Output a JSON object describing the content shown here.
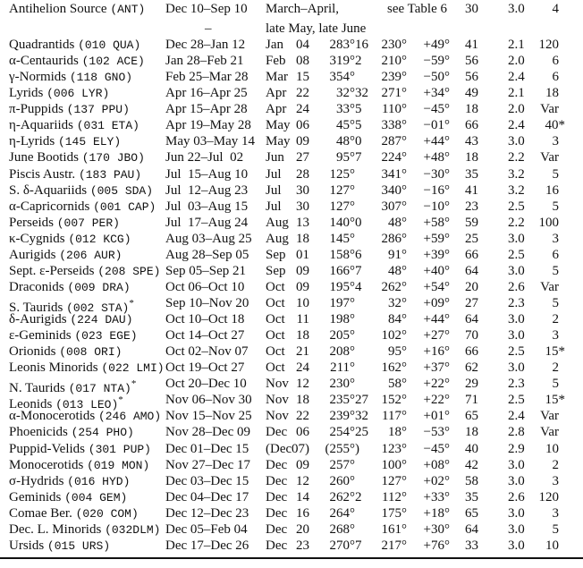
{
  "first_row": {
    "name": "Antihelion Source",
    "code": "(ANT)",
    "dates": "Dec 10–Sep 10",
    "dates_line2": "–",
    "peak_line1": "March–April,",
    "peak_line2": "late May, late June",
    "radiant": "see Table 6",
    "v": "30",
    "r": "3.0",
    "zhr": "4"
  },
  "rows": [
    {
      "name": "Quadrantids",
      "code": "(010 QUA)",
      "mark": "",
      "dates": "Dec 28–Jan 12",
      "pm": "Jan",
      "pd": "04",
      "lambda": "283°16",
      "ra": "230°",
      "dec": "+49°",
      "v": "41",
      "r": "2.1",
      "zhr": "120"
    },
    {
      "name": "α-Centaurids",
      "code": "(102 ACE)",
      "mark": "",
      "dates": "Jan 28–Feb 21",
      "pm": "Feb",
      "pd": "08",
      "lambda": "319°2",
      "ra": "210°",
      "dec": "−59°",
      "v": "56",
      "r": "2.0",
      "zhr": "6"
    },
    {
      "name": "γ-Normids",
      "code": "(118 GNO)",
      "mark": "",
      "dates": "Feb 25–Mar 28",
      "pm": "Mar",
      "pd": "15",
      "lambda": "354°",
      "ra": "239°",
      "dec": "−50°",
      "v": "56",
      "r": "2.4",
      "zhr": "6"
    },
    {
      "name": "Lyrids",
      "code": "(006 LYR)",
      "mark": "",
      "dates": "Apr 16–Apr 25",
      "pm": "Apr",
      "pd": "22",
      "lambda": "32°32",
      "ra": "271°",
      "dec": "+34°",
      "v": "49",
      "r": "2.1",
      "zhr": "18"
    },
    {
      "name": "π-Puppids",
      "code": "(137 PPU)",
      "mark": "",
      "dates": "Apr 15–Apr 28",
      "pm": "Apr",
      "pd": "24",
      "lambda": "33°5",
      "ra": "110°",
      "dec": "−45°",
      "v": "18",
      "r": "2.0",
      "zhr": "Var"
    },
    {
      "name": "η-Aquariids",
      "code": "(031 ETA)",
      "mark": "",
      "dates": "Apr 19–May 28",
      "pm": "May",
      "pd": "06",
      "lambda": "45°5",
      "ra": "338°",
      "dec": "−01°",
      "v": "66",
      "r": "2.4",
      "zhr": "40*"
    },
    {
      "name": "η-Lyrids",
      "code": "(145 ELY)",
      "mark": "",
      "dates": "May 03–May 14",
      "pm": "May",
      "pd": "09",
      "lambda": "48°0",
      "ra": "287°",
      "dec": "+44°",
      "v": "43",
      "r": "3.0",
      "zhr": "3"
    },
    {
      "name": "June Bootids",
      "code": "(170 JBO)",
      "mark": "",
      "dates": "Jun 22–Jul  02",
      "pm": "Jun",
      "pd": "27",
      "lambda": "95°7",
      "ra": "224°",
      "dec": "+48°",
      "v": "18",
      "r": "2.2",
      "zhr": "Var"
    },
    {
      "name": "Piscis Austr.",
      "code": "(183 PAU)",
      "mark": "",
      "dates": "Jul  15–Aug 10",
      "pm": "Jul",
      "pd": "28",
      "lambda": "125°",
      "ra": "341°",
      "dec": "−30°",
      "v": "35",
      "r": "3.2",
      "zhr": "5"
    },
    {
      "name": "S. δ-Aquariids",
      "code": "(005 SDA)",
      "mark": "",
      "dates": "Jul  12–Aug 23",
      "pm": "Jul",
      "pd": "30",
      "lambda": "127°",
      "ra": "340°",
      "dec": "−16°",
      "v": "41",
      "r": "3.2",
      "zhr": "16"
    },
    {
      "name": "α-Capricornids",
      "code": "(001 CAP)",
      "mark": "",
      "dates": "Jul  03–Aug 15",
      "pm": "Jul",
      "pd": "30",
      "lambda": "127°",
      "ra": "307°",
      "dec": "−10°",
      "v": "23",
      "r": "2.5",
      "zhr": "5"
    },
    {
      "name": "Perseids",
      "code": "(007 PER)",
      "mark": "",
      "dates": "Jul  17–Aug 24",
      "pm": "Aug",
      "pd": "13",
      "lambda": "140°0",
      "ra": "48°",
      "dec": "+58°",
      "v": "59",
      "r": "2.2",
      "zhr": "100"
    },
    {
      "name": "κ-Cygnids",
      "code": "(012 KCG)",
      "mark": "",
      "dates": "Aug 03–Aug 25",
      "pm": "Aug",
      "pd": "18",
      "lambda": "145°",
      "ra": "286°",
      "dec": "+59°",
      "v": "25",
      "r": "3.0",
      "zhr": "3"
    },
    {
      "name": "Aurigids",
      "code": "(206 AUR)",
      "mark": "",
      "dates": "Aug 28–Sep 05",
      "pm": "Sep",
      "pd": "01",
      "lambda": "158°6",
      "ra": "91°",
      "dec": "+39°",
      "v": "66",
      "r": "2.5",
      "zhr": "6"
    },
    {
      "name": "Sept. ε-Perseids",
      "code": "(208 SPE)",
      "mark": "",
      "dates": "Sep 05–Sep 21",
      "pm": "Sep",
      "pd": "09",
      "lambda": "166°7",
      "ra": "48°",
      "dec": "+40°",
      "v": "64",
      "r": "3.0",
      "zhr": "5"
    },
    {
      "name": "Draconids",
      "code": "(009 DRA)",
      "mark": "",
      "dates": "Oct 06–Oct 10",
      "pm": "Oct",
      "pd": "09",
      "lambda": "195°4",
      "ra": "262°",
      "dec": "+54°",
      "v": "20",
      "r": "2.6",
      "zhr": "Var"
    },
    {
      "name": "S. Taurids",
      "code": "(002 STA)",
      "mark": "*",
      "dates": "Sep 10–Nov 20",
      "pm": "Oct",
      "pd": "10",
      "lambda": "197°",
      "ra": "32°",
      "dec": "+09°",
      "v": "27",
      "r": "2.3",
      "zhr": "5"
    },
    {
      "name": "δ-Aurigids",
      "code": "(224 DAU)",
      "mark": "",
      "dates": "Oct 10–Oct 18",
      "pm": "Oct",
      "pd": "11",
      "lambda": "198°",
      "ra": "84°",
      "dec": "+44°",
      "v": "64",
      "r": "3.0",
      "zhr": "2"
    },
    {
      "name": "ε-Geminids",
      "code": "(023 EGE)",
      "mark": "",
      "dates": "Oct 14–Oct 27",
      "pm": "Oct",
      "pd": "18",
      "lambda": "205°",
      "ra": "102°",
      "dec": "+27°",
      "v": "70",
      "r": "3.0",
      "zhr": "3"
    },
    {
      "name": "Orionids",
      "code": "(008 ORI)",
      "mark": "",
      "dates": "Oct 02–Nov 07",
      "pm": "Oct",
      "pd": "21",
      "lambda": "208°",
      "ra": "95°",
      "dec": "+16°",
      "v": "66",
      "r": "2.5",
      "zhr": "15*"
    },
    {
      "name": "Leonis Minorids",
      "code": "(022 LMI)",
      "mark": "",
      "dates": "Oct 19–Oct 27",
      "pm": "Oct",
      "pd": "24",
      "lambda": "211°",
      "ra": "162°",
      "dec": "+37°",
      "v": "62",
      "r": "3.0",
      "zhr": "2"
    },
    {
      "name": "N. Taurids",
      "code": "(017 NTA)",
      "mark": "*",
      "dates": "Oct 20–Dec 10",
      "pm": "Nov",
      "pd": "12",
      "lambda": "230°",
      "ra": "58°",
      "dec": "+22°",
      "v": "29",
      "r": "2.3",
      "zhr": "5"
    },
    {
      "name": "Leonids",
      "code": "(013 LEO)",
      "mark": "*",
      "dates": "Nov 06–Nov 30",
      "pm": "Nov",
      "pd": "18",
      "lambda": "235°27",
      "ra": "152°",
      "dec": "+22°",
      "v": "71",
      "r": "2.5",
      "zhr": "15*"
    },
    {
      "name": "α-Monocerotids",
      "code": "(246 AMO)",
      "mark": "",
      "dates": "Nov 15–Nov 25",
      "pm": "Nov",
      "pd": "22",
      "lambda": "239°32",
      "ra": "117°",
      "dec": "+01°",
      "v": "65",
      "r": "2.4",
      "zhr": "Var"
    },
    {
      "name": "Phoenicids",
      "code": "(254 PHO)",
      "mark": "",
      "dates": "Nov 28–Dec 09",
      "pm": "Dec",
      "pd": "06",
      "lambda": "254°25",
      "ra": "18°",
      "dec": "−53°",
      "v": "18",
      "r": "2.8",
      "zhr": "Var"
    },
    {
      "name": "Puppid-Velids",
      "code": "(301 PUP)",
      "mark": "",
      "dates": "Dec 01–Dec 15",
      "pm": "(Dec",
      "pd": "07)",
      "lambda": "(255°)",
      "ra": "123°",
      "dec": "−45°",
      "v": "40",
      "r": "2.9",
      "zhr": "10"
    },
    {
      "name": "Monocerotids",
      "code": "(019 MON)",
      "mark": "",
      "dates": "Nov 27–Dec 17",
      "pm": "Dec",
      "pd": "09",
      "lambda": "257°",
      "ra": "100°",
      "dec": "+08°",
      "v": "42",
      "r": "3.0",
      "zhr": "2"
    },
    {
      "name": "σ-Hydrids",
      "code": "(016 HYD)",
      "mark": "",
      "dates": "Dec 03–Dec 15",
      "pm": "Dec",
      "pd": "12",
      "lambda": "260°",
      "ra": "127°",
      "dec": "+02°",
      "v": "58",
      "r": "3.0",
      "zhr": "3"
    },
    {
      "name": "Geminids",
      "code": "(004 GEM)",
      "mark": "",
      "dates": "Dec 04–Dec 17",
      "pm": "Dec",
      "pd": "14",
      "lambda": "262°2",
      "ra": "112°",
      "dec": "+33°",
      "v": "35",
      "r": "2.6",
      "zhr": "120"
    },
    {
      "name": "Comae Ber.",
      "code": "(020 COM)",
      "mark": "",
      "dates": "Dec 12–Dec 23",
      "pm": "Dec",
      "pd": "16",
      "lambda": "264°",
      "ra": "175°",
      "dec": "+18°",
      "v": "65",
      "r": "3.0",
      "zhr": "3"
    },
    {
      "name": "Dec. L. Minorids",
      "code": "(032DLM)",
      "mark": "",
      "dates": "Dec 05–Feb 04",
      "pm": "Dec",
      "pd": "20",
      "lambda": "268°",
      "ra": "161°",
      "dec": "+30°",
      "v": "64",
      "r": "3.0",
      "zhr": "5"
    },
    {
      "name": "Ursids",
      "code": "(015 URS)",
      "mark": "",
      "dates": "Dec 17–Dec 26",
      "pm": "Dec",
      "pd": "23",
      "lambda": "270°7",
      "ra": "217°",
      "dec": "+76°",
      "v": "33",
      "r": "3.0",
      "zhr": "10"
    }
  ]
}
